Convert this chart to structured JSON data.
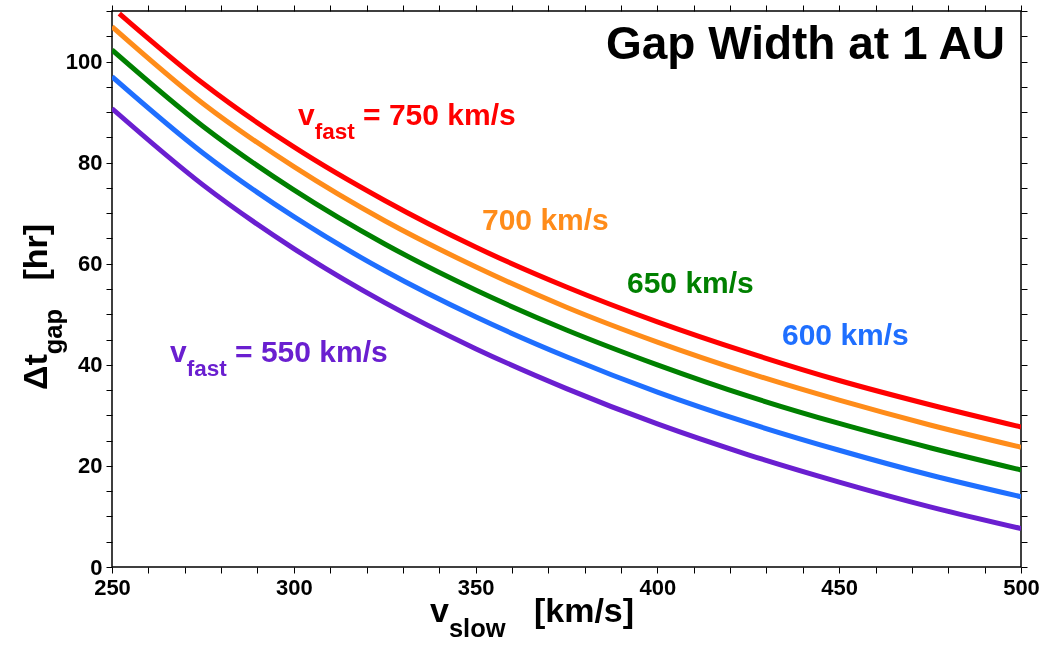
{
  "chart_data": {
    "type": "line",
    "title": "Gap Width at 1 AU",
    "xlabel": "v$_{slow}$   [km/s]",
    "ylabel": "Δt$_{gap}$   [hr]",
    "xlim": [
      250,
      500
    ],
    "ylim": [
      0,
      110
    ],
    "xticks": [
      250,
      {
        "value": 260,
        "label": null
      },
      {
        "value": 270,
        "label": null
      },
      {
        "value": 280,
        "label": null
      },
      {
        "value": 290,
        "label": null
      },
      300,
      {
        "value": 310,
        "label": null
      },
      {
        "value": 320,
        "label": null
      },
      {
        "value": 330,
        "label": null
      },
      {
        "value": 340,
        "label": null
      },
      350,
      {
        "value": 360,
        "label": null
      },
      {
        "value": 370,
        "label": null
      },
      {
        "value": 380,
        "label": null
      },
      {
        "value": 390,
        "label": null
      },
      400,
      {
        "value": 410,
        "label": null
      },
      {
        "value": 420,
        "label": null
      },
      {
        "value": 430,
        "label": null
      },
      {
        "value": 440,
        "label": null
      },
      450,
      {
        "value": 460,
        "label": null
      },
      {
        "value": 470,
        "label": null
      },
      {
        "value": 480,
        "label": null
      },
      {
        "value": 490,
        "label": null
      },
      500
    ],
    "yticks": [
      0,
      {
        "value": 5,
        "label": null
      },
      {
        "value": 10,
        "label": null
      },
      {
        "value": 15,
        "label": null
      },
      20,
      {
        "value": 25,
        "label": null
      },
      {
        "value": 30,
        "label": null
      },
      {
        "value": 35,
        "label": null
      },
      40,
      {
        "value": 45,
        "label": null
      },
      {
        "value": 50,
        "label": null
      },
      {
        "value": 55,
        "label": null
      },
      60,
      {
        "value": 65,
        "label": null
      },
      {
        "value": 70,
        "label": null
      },
      {
        "value": 75,
        "label": null
      },
      80,
      {
        "value": 85,
        "label": null
      },
      {
        "value": 90,
        "label": null
      },
      {
        "value": 95,
        "label": null
      },
      100,
      {
        "value": 105,
        "label": null
      },
      {
        "value": 110,
        "label": null
      }
    ],
    "x": [
      250,
      275,
      300,
      325,
      350,
      375,
      400,
      425,
      450,
      475,
      500
    ],
    "grid": false,
    "line_style": "solid",
    "marker": "none",
    "series": [
      {
        "name": "v$_{fast}$ = 750 km/s",
        "color": "#ff0000",
        "x": [
          252,
          275,
          300,
          325,
          350,
          375,
          400,
          425,
          450,
          475,
          500
        ],
        "values": [
          109.5,
          95.7,
          83.1,
          72.5,
          63.3,
          55.4,
          48.5,
          42.4,
          36.9,
          32.1,
          27.7
        ]
      },
      {
        "name": "700 km/s",
        "color": "#ff8c1a",
        "values": [
          106.9,
          91.7,
          79.2,
          68.5,
          59.4,
          51.4,
          44.5,
          38.4,
          33.0,
          28.1,
          23.7
        ]
      },
      {
        "name": "650 km/s",
        "color": "#008000",
        "values": [
          102.3,
          87.2,
          74.6,
          63.9,
          54.8,
          46.9,
          40.0,
          33.8,
          28.4,
          23.6,
          19.2
        ]
      },
      {
        "name": "600 km/s",
        "color": "#1f6fff",
        "values": [
          97.0,
          81.9,
          69.3,
          58.6,
          49.5,
          41.6,
          34.6,
          28.5,
          23.1,
          18.2,
          13.9
        ]
      },
      {
        "name": "v$_{fast}$ = 550 km/s",
        "color": "#6a1fd0",
        "values": [
          90.7,
          75.6,
          63.0,
          52.3,
          43.2,
          35.3,
          28.3,
          22.2,
          16.8,
          11.9,
          7.6
        ]
      }
    ]
  }
}
